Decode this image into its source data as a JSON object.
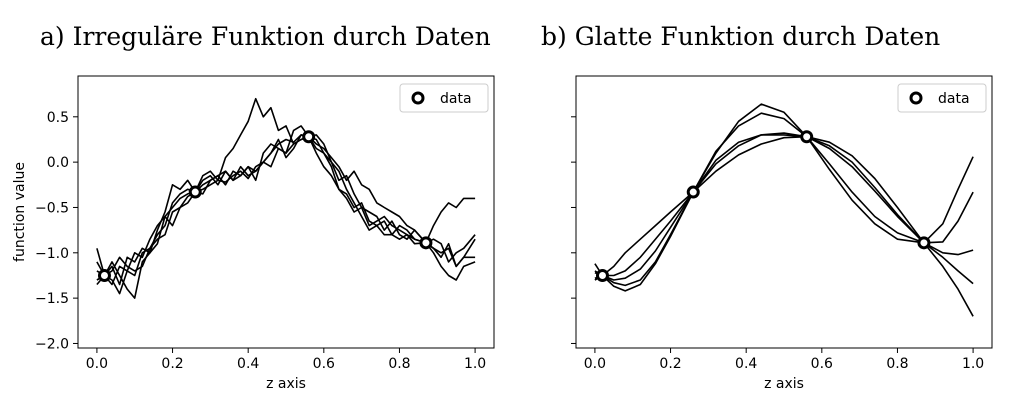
{
  "chart_data": [
    {
      "type": "line",
      "title": "a) Irreguläre Funktion durch Daten",
      "xlabel": "z axis",
      "ylabel": "function value",
      "xlim": [
        -0.05,
        1.05
      ],
      "ylim": [
        -2.05,
        0.95
      ],
      "xticks": [
        0.0,
        0.2,
        0.4,
        0.6,
        0.8,
        1.0
      ],
      "xtick_labels": [
        "0.0",
        "0.2",
        "0.4",
        "0.6",
        "0.8",
        "1.0"
      ],
      "yticks": [
        -2.0,
        -1.5,
        -1.0,
        -0.5,
        0.0,
        0.5
      ],
      "ytick_labels": [
        "−2.0",
        "−1.5",
        "−1.0",
        "−0.5",
        "0.0",
        "0.5"
      ],
      "legend": {
        "placement": "top-right",
        "entries": [
          "data"
        ]
      },
      "points": [
        {
          "x": 0.02,
          "y": -1.25
        },
        {
          "x": 0.26,
          "y": -0.33
        },
        {
          "x": 0.56,
          "y": 0.28
        },
        {
          "x": 0.87,
          "y": -0.89
        }
      ],
      "series": [
        {
          "x": [
            0.0,
            0.02,
            0.04,
            0.06,
            0.08,
            0.1,
            0.12,
            0.14,
            0.16,
            0.18,
            0.2,
            0.22,
            0.24,
            0.26,
            0.28,
            0.3,
            0.32,
            0.34,
            0.36,
            0.38,
            0.4,
            0.42,
            0.44,
            0.46,
            0.48,
            0.5,
            0.52,
            0.54,
            0.56,
            0.58,
            0.6,
            0.62,
            0.64,
            0.66,
            0.68,
            0.7,
            0.72,
            0.74,
            0.76,
            0.78,
            0.8,
            0.82,
            0.84,
            0.87,
            0.89,
            0.91,
            0.93,
            0.95,
            0.97,
            1.0
          ],
          "y": [
            -0.95,
            -1.25,
            -1.15,
            -1.35,
            -1.05,
            -1.1,
            -0.95,
            -1.0,
            -0.75,
            -0.55,
            -0.25,
            -0.3,
            -0.2,
            -0.33,
            -0.15,
            -0.1,
            -0.2,
            0.05,
            0.15,
            0.3,
            0.45,
            0.7,
            0.5,
            0.6,
            0.35,
            0.4,
            0.2,
            0.25,
            0.28,
            0.1,
            -0.05,
            -0.15,
            -0.3,
            -0.4,
            -0.55,
            -0.5,
            -0.7,
            -0.65,
            -0.6,
            -0.7,
            -0.75,
            -0.8,
            -0.85,
            -0.89,
            -0.95,
            -1.05,
            -0.9,
            -1.15,
            -1.05,
            -0.85
          ]
        },
        {
          "x": [
            0.0,
            0.02,
            0.04,
            0.06,
            0.08,
            0.1,
            0.12,
            0.14,
            0.16,
            0.18,
            0.2,
            0.22,
            0.24,
            0.26,
            0.28,
            0.3,
            0.32,
            0.34,
            0.36,
            0.38,
            0.4,
            0.42,
            0.44,
            0.46,
            0.48,
            0.5,
            0.52,
            0.54,
            0.56,
            0.58,
            0.6,
            0.62,
            0.64,
            0.66,
            0.68,
            0.7,
            0.72,
            0.74,
            0.76,
            0.78,
            0.8,
            0.82,
            0.84,
            0.87,
            0.89,
            0.91,
            0.93,
            0.95,
            0.97,
            1.0
          ],
          "y": [
            -1.35,
            -1.25,
            -1.3,
            -1.45,
            -1.2,
            -1.0,
            -1.05,
            -0.85,
            -0.7,
            -0.6,
            -0.5,
            -0.4,
            -0.35,
            -0.33,
            -0.3,
            -0.25,
            -0.2,
            -0.22,
            -0.15,
            -0.1,
            -0.18,
            -0.05,
            0.0,
            0.1,
            0.2,
            0.25,
            0.22,
            0.3,
            0.28,
            0.2,
            0.15,
            0.05,
            -0.05,
            -0.2,
            -0.1,
            -0.25,
            -0.3,
            -0.45,
            -0.5,
            -0.55,
            -0.6,
            -0.7,
            -0.75,
            -0.89,
            -0.7,
            -0.55,
            -0.45,
            -0.5,
            -0.4,
            -0.4
          ]
        },
        {
          "x": [
            0.0,
            0.02,
            0.04,
            0.06,
            0.08,
            0.1,
            0.12,
            0.14,
            0.16,
            0.18,
            0.2,
            0.22,
            0.24,
            0.26,
            0.28,
            0.3,
            0.32,
            0.34,
            0.36,
            0.38,
            0.4,
            0.42,
            0.44,
            0.46,
            0.48,
            0.5,
            0.52,
            0.54,
            0.56,
            0.58,
            0.6,
            0.62,
            0.64,
            0.66,
            0.68,
            0.7,
            0.72,
            0.74,
            0.76,
            0.78,
            0.8,
            0.82,
            0.84,
            0.87,
            0.89,
            0.91,
            0.93,
            0.95,
            0.97,
            1.0
          ],
          "y": [
            -1.2,
            -1.25,
            -1.1,
            -1.25,
            -1.4,
            -1.5,
            -1.1,
            -1.0,
            -0.9,
            -0.6,
            -0.7,
            -0.5,
            -0.45,
            -0.33,
            -0.2,
            -0.15,
            -0.25,
            -0.1,
            -0.2,
            -0.15,
            -0.05,
            -0.1,
            0.0,
            0.1,
            0.25,
            0.05,
            0.15,
            0.3,
            0.28,
            0.25,
            0.1,
            0.0,
            -0.1,
            -0.3,
            -0.45,
            -0.6,
            -0.75,
            -0.7,
            -0.8,
            -0.8,
            -0.7,
            -0.75,
            -0.85,
            -0.89,
            -1.0,
            -1.15,
            -1.25,
            -1.3,
            -1.15,
            -1.1
          ]
        },
        {
          "x": [
            0.0,
            0.02,
            0.04,
            0.06,
            0.08,
            0.1,
            0.12,
            0.14,
            0.16,
            0.18,
            0.2,
            0.22,
            0.24,
            0.26,
            0.28,
            0.3,
            0.32,
            0.34,
            0.36,
            0.38,
            0.4,
            0.42,
            0.44,
            0.46,
            0.48,
            0.5,
            0.52,
            0.54,
            0.56,
            0.58,
            0.6,
            0.62,
            0.64,
            0.66,
            0.68,
            0.7,
            0.72,
            0.74,
            0.76,
            0.78,
            0.8,
            0.82,
            0.84,
            0.87,
            0.89,
            0.91,
            0.93,
            0.95,
            0.97,
            1.0
          ],
          "y": [
            -1.3,
            -1.25,
            -1.35,
            -1.15,
            -1.2,
            -1.25,
            -1.0,
            -0.95,
            -0.8,
            -0.7,
            -0.45,
            -0.35,
            -0.3,
            -0.33,
            -0.25,
            -0.2,
            -0.15,
            -0.25,
            -0.1,
            -0.15,
            -0.05,
            -0.2,
            0.1,
            0.2,
            0.15,
            0.1,
            0.2,
            0.25,
            0.28,
            0.3,
            0.2,
            0.0,
            -0.2,
            -0.15,
            -0.35,
            -0.5,
            -0.55,
            -0.6,
            -0.75,
            -0.65,
            -0.8,
            -0.85,
            -0.75,
            -0.89,
            -0.95,
            -1.0,
            -0.95,
            -1.15,
            -1.05,
            -1.05
          ]
        },
        {
          "x": [
            0.0,
            0.02,
            0.04,
            0.06,
            0.08,
            0.1,
            0.12,
            0.14,
            0.16,
            0.18,
            0.2,
            0.22,
            0.24,
            0.26,
            0.28,
            0.3,
            0.32,
            0.34,
            0.36,
            0.38,
            0.4,
            0.42,
            0.44,
            0.46,
            0.48,
            0.5,
            0.52,
            0.54,
            0.56,
            0.58,
            0.6,
            0.62,
            0.64,
            0.66,
            0.68,
            0.7,
            0.72,
            0.74,
            0.76,
            0.78,
            0.8,
            0.82,
            0.84,
            0.87,
            0.89,
            0.91,
            0.93,
            0.95,
            0.97,
            1.0
          ],
          "y": [
            -1.1,
            -1.25,
            -1.2,
            -1.05,
            -1.15,
            -1.2,
            -1.15,
            -0.95,
            -0.85,
            -0.8,
            -0.55,
            -0.5,
            -0.38,
            -0.33,
            -0.35,
            -0.2,
            -0.15,
            -0.1,
            -0.2,
            -0.05,
            -0.15,
            -0.1,
            0.0,
            -0.05,
            0.15,
            0.1,
            0.35,
            0.4,
            0.28,
            0.15,
            0.1,
            -0.05,
            -0.3,
            -0.35,
            -0.5,
            -0.45,
            -0.65,
            -0.7,
            -0.65,
            -0.8,
            -0.85,
            -0.8,
            -0.9,
            -0.89,
            -0.85,
            -0.9,
            -1.1,
            -1.0,
            -0.95,
            -0.8
          ]
        }
      ]
    },
    {
      "type": "line",
      "title": "b) Glatte Funktion durch Daten",
      "xlabel": "z axis",
      "ylabel": "",
      "xlim": [
        -0.05,
        1.05
      ],
      "ylim": [
        -2.05,
        0.95
      ],
      "xticks": [
        0.0,
        0.2,
        0.4,
        0.6,
        0.8,
        1.0
      ],
      "xtick_labels": [
        "0.0",
        "0.2",
        "0.4",
        "0.6",
        "0.8",
        "1.0"
      ],
      "yticks": [
        -2.0,
        -1.5,
        -1.0,
        -0.5,
        0.0,
        0.5
      ],
      "legend": {
        "placement": "top-right",
        "entries": [
          "data"
        ]
      },
      "points": [
        {
          "x": 0.02,
          "y": -1.25
        },
        {
          "x": 0.26,
          "y": -0.33
        },
        {
          "x": 0.56,
          "y": 0.28
        },
        {
          "x": 0.87,
          "y": -0.89
        }
      ],
      "series": [
        {
          "x": [
            0.0,
            0.02,
            0.05,
            0.08,
            0.12,
            0.16,
            0.2,
            0.26,
            0.32,
            0.38,
            0.44,
            0.5,
            0.56,
            0.62,
            0.68,
            0.74,
            0.8,
            0.87,
            0.92,
            0.96,
            1.0
          ],
          "y": [
            -1.3,
            -1.25,
            -1.15,
            -1.0,
            -0.85,
            -0.7,
            -0.55,
            -0.33,
            -0.1,
            0.08,
            0.2,
            0.27,
            0.28,
            0.22,
            0.07,
            -0.18,
            -0.5,
            -0.89,
            -1.15,
            -1.4,
            -1.7
          ]
        },
        {
          "x": [
            0.0,
            0.02,
            0.05,
            0.08,
            0.12,
            0.16,
            0.2,
            0.26,
            0.32,
            0.38,
            0.44,
            0.5,
            0.56,
            0.62,
            0.68,
            0.74,
            0.8,
            0.87,
            0.92,
            0.96,
            1.0
          ],
          "y": [
            -1.2,
            -1.25,
            -1.33,
            -1.36,
            -1.3,
            -1.1,
            -0.8,
            -0.33,
            0.1,
            0.45,
            0.64,
            0.55,
            0.28,
            -0.08,
            -0.42,
            -0.68,
            -0.85,
            -0.89,
            -0.68,
            -0.3,
            0.06
          ]
        },
        {
          "x": [
            0.0,
            0.02,
            0.05,
            0.08,
            0.12,
            0.16,
            0.2,
            0.26,
            0.32,
            0.38,
            0.44,
            0.5,
            0.56,
            0.62,
            0.68,
            0.74,
            0.8,
            0.87,
            0.92,
            0.96,
            1.0
          ],
          "y": [
            -1.12,
            -1.25,
            -1.37,
            -1.42,
            -1.35,
            -1.12,
            -0.82,
            -0.33,
            0.12,
            0.4,
            0.54,
            0.48,
            0.28,
            -0.02,
            -0.33,
            -0.6,
            -0.78,
            -0.89,
            -0.88,
            -0.65,
            -0.33
          ]
        },
        {
          "x": [
            0.0,
            0.02,
            0.05,
            0.08,
            0.12,
            0.16,
            0.2,
            0.26,
            0.32,
            0.38,
            0.44,
            0.5,
            0.56,
            0.62,
            0.68,
            0.74,
            0.8,
            0.87,
            0.92,
            0.96,
            1.0
          ],
          "y": [
            -1.28,
            -1.25,
            -1.25,
            -1.2,
            -1.05,
            -0.85,
            -0.65,
            -0.33,
            -0.02,
            0.18,
            0.3,
            0.32,
            0.28,
            0.15,
            -0.05,
            -0.32,
            -0.6,
            -0.89,
            -1.0,
            -1.02,
            -0.97
          ]
        },
        {
          "x": [
            0.0,
            0.02,
            0.05,
            0.08,
            0.12,
            0.16,
            0.2,
            0.26,
            0.32,
            0.38,
            0.44,
            0.5,
            0.56,
            0.62,
            0.68,
            0.74,
            0.8,
            0.87,
            0.92,
            0.96,
            1.0
          ],
          "y": [
            -1.22,
            -1.25,
            -1.3,
            -1.28,
            -1.18,
            -0.98,
            -0.72,
            -0.33,
            0.02,
            0.22,
            0.3,
            0.3,
            0.28,
            0.18,
            0.0,
            -0.28,
            -0.58,
            -0.89,
            -1.05,
            -1.2,
            -1.34
          ]
        }
      ]
    }
  ]
}
